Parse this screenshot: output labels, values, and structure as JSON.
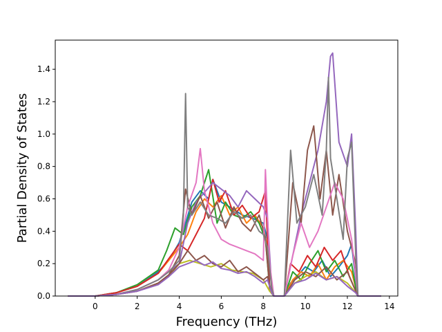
{
  "chart_data": {
    "type": "line",
    "title": "",
    "xlabel": "Frequency (THz)",
    "ylabel": "Partial Density of States",
    "xlim": [
      -1.9,
      14.4
    ],
    "ylim": [
      0.0,
      1.58
    ],
    "xticks": [
      0,
      2,
      4,
      6,
      8,
      10,
      12,
      14
    ],
    "yticks": [
      0.0,
      0.2,
      0.4,
      0.6,
      0.8,
      1.0,
      1.2,
      1.4
    ],
    "xtick_labels": [
      "0",
      "2",
      "4",
      "6",
      "8",
      "10",
      "12",
      "14"
    ],
    "ytick_labels": [
      "0.0",
      "0.2",
      "0.4",
      "0.6",
      "0.8",
      "1.0",
      "1.2",
      "1.4"
    ],
    "grid": false,
    "legend": "none",
    "series": [
      {
        "color": "#1f77b4",
        "x": [
          -1.3,
          0,
          1,
          2,
          3,
          3.5,
          4,
          4.3,
          4.6,
          5,
          5.4,
          5.6,
          6,
          6.4,
          7,
          7.5,
          8,
          8.2,
          8.3,
          8.5,
          9,
          9.3,
          9.6,
          10,
          10.4,
          10.8,
          11.2,
          11.6,
          12,
          12.2,
          12.4,
          12.5,
          13.6
        ],
        "y": [
          0,
          0,
          0.02,
          0.06,
          0.15,
          0.22,
          0.33,
          0.45,
          0.58,
          0.65,
          0.6,
          0.72,
          0.58,
          0.55,
          0.5,
          0.48,
          0.45,
          0.35,
          0.05,
          0,
          0,
          0.08,
          0.12,
          0.18,
          0.15,
          0.22,
          0.12,
          0.18,
          0.25,
          0.32,
          0.1,
          0,
          0
        ]
      },
      {
        "color": "#ff7f0e",
        "x": [
          -1.3,
          0,
          1,
          2,
          3,
          3.5,
          4,
          4.4,
          4.8,
          5.2,
          5.6,
          6,
          6.4,
          6.8,
          7.2,
          7.6,
          8,
          8.2,
          8.3,
          8.5,
          9,
          9.4,
          9.8,
          10.2,
          10.6,
          11,
          11.4,
          11.8,
          12.2,
          12.4,
          12.5,
          13.6
        ],
        "y": [
          0,
          0,
          0.02,
          0.06,
          0.14,
          0.22,
          0.3,
          0.38,
          0.52,
          0.6,
          0.55,
          0.62,
          0.5,
          0.55,
          0.45,
          0.5,
          0.42,
          0.3,
          0.05,
          0,
          0,
          0.1,
          0.15,
          0.12,
          0.2,
          0.1,
          0.18,
          0.22,
          0.15,
          0.05,
          0,
          0
        ]
      },
      {
        "color": "#2ca02c",
        "x": [
          -1.3,
          0,
          1,
          2,
          3,
          3.4,
          3.8,
          4.2,
          4.6,
          5,
          5.4,
          5.8,
          6.2,
          6.6,
          7,
          7.4,
          7.8,
          8.1,
          8.3,
          8.5,
          9,
          9.4,
          9.8,
          10.2,
          10.6,
          11,
          11.4,
          11.8,
          12.2,
          12.4,
          12.5,
          13.6
        ],
        "y": [
          0,
          0,
          0.02,
          0.07,
          0.16,
          0.28,
          0.42,
          0.38,
          0.55,
          0.62,
          0.78,
          0.45,
          0.58,
          0.5,
          0.48,
          0.52,
          0.45,
          0.35,
          0.05,
          0,
          0,
          0.15,
          0.1,
          0.2,
          0.28,
          0.15,
          0.22,
          0.12,
          0.2,
          0.05,
          0,
          0
        ]
      },
      {
        "color": "#d62728",
        "x": [
          -1.3,
          0,
          1,
          2,
          3,
          3.5,
          4,
          4.4,
          4.8,
          5.2,
          5.6,
          5.9,
          6.2,
          6.6,
          7,
          7.4,
          7.8,
          8.1,
          8.3,
          8.5,
          9,
          9.3,
          9.7,
          10.1,
          10.5,
          10.9,
          11.3,
          11.7,
          12.1,
          12.4,
          12.5,
          13.6
        ],
        "y": [
          0,
          0,
          0.02,
          0.06,
          0.14,
          0.23,
          0.32,
          0.28,
          0.38,
          0.48,
          0.72,
          0.58,
          0.65,
          0.5,
          0.56,
          0.48,
          0.52,
          0.65,
          0.05,
          0,
          0,
          0.2,
          0.15,
          0.25,
          0.18,
          0.3,
          0.22,
          0.28,
          0.12,
          0.03,
          0,
          0
        ]
      },
      {
        "color": "#9467bd",
        "x": [
          -1.3,
          0,
          1,
          2,
          3,
          3.5,
          4,
          4.4,
          4.8,
          5.2,
          5.6,
          6,
          6.4,
          6.8,
          7.2,
          7.6,
          8,
          8.2,
          8.4,
          8.5,
          9,
          9.4,
          9.8,
          10.2,
          10.6,
          11,
          11.2,
          11.3,
          11.6,
          12,
          12.2,
          12.4,
          12.5,
          13.6
        ],
        "y": [
          0,
          0,
          0.01,
          0.04,
          0.1,
          0.15,
          0.2,
          0.45,
          0.58,
          0.64,
          0.7,
          0.66,
          0.62,
          0.55,
          0.65,
          0.6,
          0.55,
          0.48,
          0.05,
          0,
          0,
          0.25,
          0.5,
          0.7,
          0.9,
          1.2,
          1.48,
          1.5,
          0.95,
          0.8,
          1.0,
          0.4,
          0,
          0
        ]
      },
      {
        "color": "#8c564b",
        "x": [
          -1.3,
          0,
          1,
          2,
          3,
          3.5,
          4,
          4.3,
          4.6,
          5,
          5.4,
          5.8,
          6.2,
          6.6,
          7,
          7.4,
          7.8,
          8.1,
          8.3,
          8.5,
          9,
          9.4,
          9.8,
          10.1,
          10.4,
          10.7,
          11,
          11.3,
          11.6,
          12,
          12.4,
          12.5,
          13.6
        ],
        "y": [
          0,
          0,
          0.01,
          0.03,
          0.08,
          0.13,
          0.25,
          0.66,
          0.5,
          0.62,
          0.48,
          0.58,
          0.42,
          0.55,
          0.45,
          0.4,
          0.5,
          0.36,
          0.05,
          0,
          0,
          0.7,
          0.45,
          0.9,
          1.05,
          0.6,
          0.9,
          0.5,
          0.75,
          0.4,
          0.2,
          0,
          0
        ]
      },
      {
        "color": "#e377c2",
        "x": [
          -1.3,
          0,
          1,
          2,
          3,
          3.5,
          4,
          4.4,
          4.8,
          5,
          5.2,
          5.6,
          6,
          6.4,
          6.8,
          7.2,
          7.6,
          8,
          8.1,
          8.3,
          8.5,
          9,
          9.4,
          9.8,
          10.2,
          10.6,
          11,
          11.4,
          11.8,
          12.2,
          12.4,
          12.5,
          13.6
        ],
        "y": [
          0,
          0,
          0.01,
          0.04,
          0.1,
          0.16,
          0.3,
          0.55,
          0.7,
          0.91,
          0.65,
          0.45,
          0.35,
          0.32,
          0.3,
          0.28,
          0.26,
          0.22,
          0.78,
          0.2,
          0,
          0,
          0.25,
          0.45,
          0.3,
          0.4,
          0.55,
          0.7,
          0.6,
          0.35,
          0.12,
          0,
          0
        ]
      },
      {
        "color": "#7f7f7f",
        "x": [
          -1.3,
          0,
          1,
          2,
          3,
          3.5,
          4,
          4.2,
          4.3,
          4.4,
          4.6,
          5,
          5.4,
          5.8,
          6.2,
          6.6,
          7,
          7.4,
          7.8,
          8,
          8.2,
          8.4,
          8.5,
          9,
          9.3,
          9.6,
          10,
          10.4,
          10.8,
          11,
          11.1,
          11.2,
          11.5,
          11.8,
          12,
          12.2,
          12.4,
          12.5,
          13.6
        ],
        "y": [
          0,
          0,
          0.01,
          0.04,
          0.1,
          0.15,
          0.22,
          0.5,
          1.25,
          0.55,
          0.5,
          0.58,
          0.5,
          0.48,
          0.45,
          0.52,
          0.48,
          0.5,
          0.4,
          0.38,
          0.3,
          0.05,
          0,
          0,
          0.9,
          0.45,
          0.55,
          0.75,
          0.5,
          0.9,
          1.35,
          0.85,
          0.6,
          0.35,
          0.85,
          0.95,
          0.25,
          0,
          0
        ]
      },
      {
        "color": "#bcbd22",
        "x": [
          -1.3,
          0,
          1,
          2,
          3,
          3.5,
          4,
          4.5,
          5,
          5.5,
          6,
          6.5,
          7,
          7.5,
          8,
          8.3,
          8.5,
          9,
          9.5,
          10,
          10.5,
          11,
          11.5,
          12,
          12.4,
          12.5,
          13.6
        ],
        "y": [
          0,
          0,
          0.01,
          0.03,
          0.08,
          0.12,
          0.2,
          0.22,
          0.2,
          0.18,
          0.2,
          0.16,
          0.15,
          0.14,
          0.1,
          0.03,
          0,
          0,
          0.08,
          0.12,
          0.15,
          0.1,
          0.12,
          0.08,
          0.02,
          0,
          0
        ]
      },
      {
        "color": "#8c564b",
        "x": [
          -1.3,
          0,
          1,
          2,
          3,
          3.5,
          4,
          4.4,
          4.8,
          5.2,
          5.6,
          6,
          6.4,
          6.8,
          7.2,
          7.6,
          8,
          8.2,
          8.4,
          8.5,
          9,
          9.5,
          10,
          10.5,
          11,
          11.5,
          12,
          12.4,
          12.5,
          13.6
        ],
        "y": [
          0,
          0,
          0.01,
          0.03,
          0.08,
          0.13,
          0.2,
          0.28,
          0.22,
          0.25,
          0.2,
          0.18,
          0.22,
          0.15,
          0.18,
          0.14,
          0.1,
          0.12,
          0.02,
          0,
          0,
          0.1,
          0.15,
          0.12,
          0.18,
          0.1,
          0.15,
          0.03,
          0,
          0
        ]
      },
      {
        "color": "#9467bd",
        "x": [
          -1.3,
          0,
          1,
          2,
          3,
          3.5,
          4,
          4.4,
          4.8,
          5.2,
          5.6,
          6,
          6.4,
          6.8,
          7.2,
          7.6,
          8,
          8.2,
          8.4,
          8.5,
          9,
          9.5,
          10,
          10.5,
          11,
          11.5,
          12,
          12.4,
          12.5,
          13.6
        ],
        "y": [
          0,
          0,
          0.01,
          0.03,
          0.07,
          0.12,
          0.18,
          0.2,
          0.22,
          0.19,
          0.21,
          0.17,
          0.16,
          0.14,
          0.15,
          0.12,
          0.08,
          0.1,
          0.02,
          0,
          0,
          0.08,
          0.1,
          0.14,
          0.1,
          0.12,
          0.06,
          0.02,
          0,
          0
        ]
      }
    ]
  }
}
